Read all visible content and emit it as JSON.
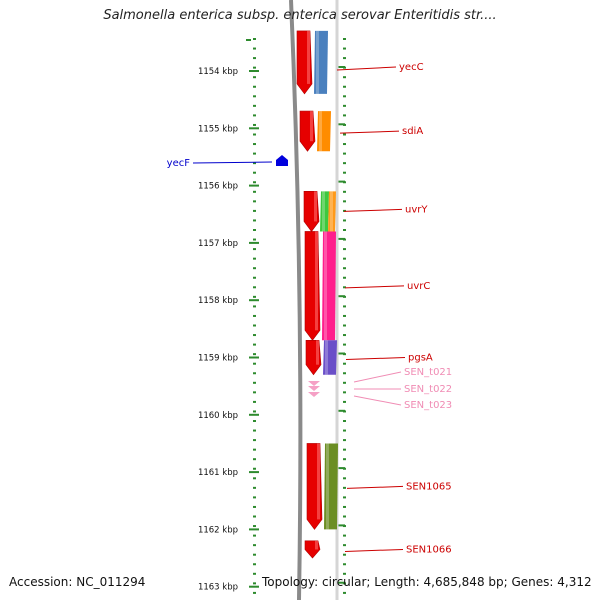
{
  "title": "Salmonella enterica subsp. enterica serovar Enteritidis str....",
  "footer": {
    "accession": "Accession: NC_011294",
    "stats": "Topology: circular; Length: 4,685,848 bp; Genes: 4,312"
  },
  "colors": {
    "background": "#ffffff",
    "scale_ticks": "#2e8b2e",
    "backbone": "#8a8a8a",
    "gene_arrow": "#e60000",
    "gene_label": "#cc0000",
    "trna_label": "#f08cb4",
    "blue_gene": "#0000dd"
  },
  "axis": {
    "unit": "kbp",
    "ticks": [
      {
        "kbp": 1154,
        "label": "1154 kbp"
      },
      {
        "kbp": 1155,
        "label": "1155 kbp"
      },
      {
        "kbp": 1156,
        "label": "1156 kbp"
      },
      {
        "kbp": 1157,
        "label": "1157 kbp"
      },
      {
        "kbp": 1158,
        "label": "1158 kbp"
      },
      {
        "kbp": 1159,
        "label": "1159 kbp"
      },
      {
        "kbp": 1160,
        "label": "1160 kbp"
      },
      {
        "kbp": 1161,
        "label": "1161 kbp"
      },
      {
        "kbp": 1162,
        "label": "1162 kbp"
      },
      {
        "kbp": 1163,
        "label": "1163 kbp"
      }
    ]
  },
  "genes": [
    {
      "name": "yecC",
      "start_kbp": 1153.3,
      "end_kbp": 1154.4,
      "kind": "cds",
      "label_color": "#cc0000",
      "feature_color": "#4a80be"
    },
    {
      "name": "sdiA",
      "start_kbp": 1154.7,
      "end_kbp": 1155.4,
      "kind": "cds",
      "label_color": "#cc0000",
      "feature_color": "#ff8c00"
    },
    {
      "name": "yecF",
      "start_kbp": 1155.6,
      "end_kbp": 1155.8,
      "kind": "cds-minus",
      "label_color": "#0000cc",
      "feature_color": "#0000dd"
    },
    {
      "name": "uvrY",
      "start_kbp": 1156.1,
      "end_kbp": 1156.8,
      "kind": "cds",
      "label_color": "#cc0000",
      "feature_color": "#3ec83e",
      "feature_color_2": "#ff9a1a"
    },
    {
      "name": "uvrC",
      "start_kbp": 1156.8,
      "end_kbp": 1158.7,
      "kind": "cds",
      "label_color": "#cc0000",
      "feature_color": "#ff1e8c"
    },
    {
      "name": "pgsA",
      "start_kbp": 1158.7,
      "end_kbp": 1159.3,
      "kind": "cds",
      "label_color": "#cc0000",
      "feature_color": "#6a4fc8"
    },
    {
      "name": "SEN_t021",
      "start_kbp": 1159.4,
      "end_kbp": 1159.5,
      "kind": "trna",
      "label_color": "#f08cb4"
    },
    {
      "name": "SEN_t022",
      "start_kbp": 1159.5,
      "end_kbp": 1159.6,
      "kind": "trna",
      "label_color": "#f08cb4"
    },
    {
      "name": "SEN_t023",
      "start_kbp": 1159.6,
      "end_kbp": 1159.7,
      "kind": "trna",
      "label_color": "#f08cb4"
    },
    {
      "name": "SEN1065",
      "start_kbp": 1160.5,
      "end_kbp": 1162.0,
      "kind": "cds",
      "label_color": "#cc0000",
      "feature_color": "#6b8e23"
    },
    {
      "name": "SEN1066",
      "start_kbp": 1162.2,
      "end_kbp": 1162.5,
      "kind": "cds",
      "label_color": "#cc0000"
    }
  ]
}
